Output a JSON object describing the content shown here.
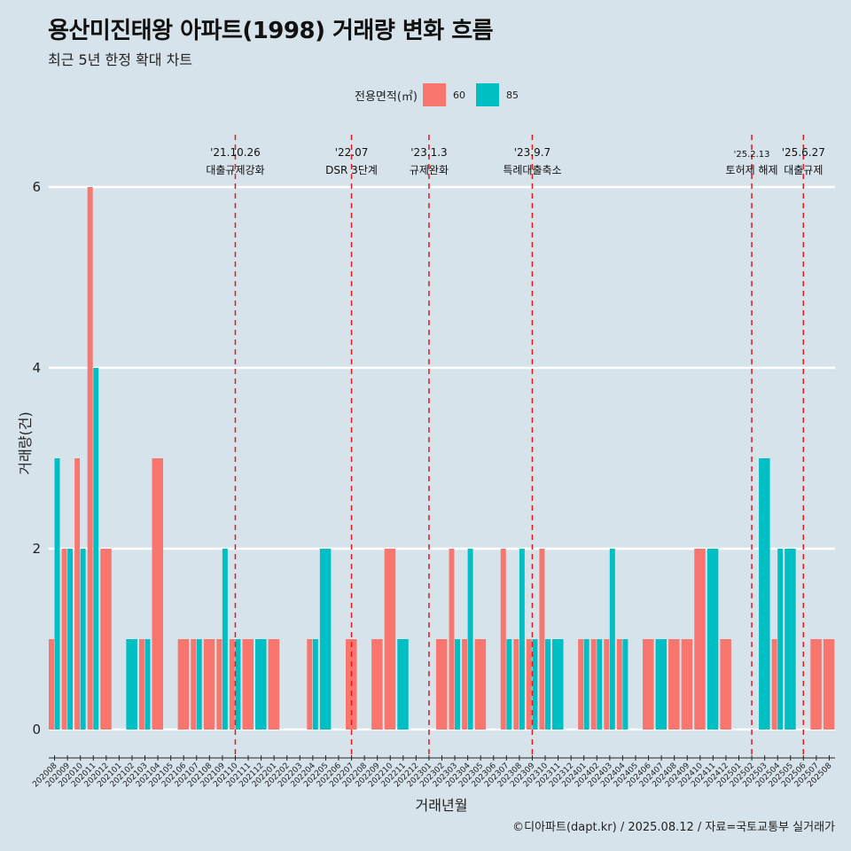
{
  "title": "용산미진태왕 아파트(1998) 거래량 변화 흐름",
  "subtitle": "최근 5년 한정 확대 차트",
  "legend": {
    "title": "전용면적(㎡)",
    "items": [
      {
        "label": "60",
        "color": "#f8766d"
      },
      {
        "label": "85",
        "color": "#00bfc4"
      }
    ]
  },
  "caption": "©디아파트(dapt.kr) / 2025.08.12 / 자료=국토교통부 실거래가",
  "chart_data": {
    "type": "bar",
    "xlabel": "거래년월",
    "ylabel": "거래량(건)",
    "ylim": [
      0,
      6
    ],
    "yticks": [
      0,
      2,
      4,
      6
    ],
    "grid": true,
    "legend_position": "top",
    "categories": [
      "202008",
      "202009",
      "202010",
      "202011",
      "202012",
      "202101",
      "202102",
      "202103",
      "202104",
      "202105",
      "202106",
      "202107",
      "202108",
      "202109",
      "202110",
      "202111",
      "202112",
      "202201",
      "202202",
      "202203",
      "202204",
      "202205",
      "202206",
      "202207",
      "202208",
      "202209",
      "202210",
      "202211",
      "202212",
      "202301",
      "202302",
      "202303",
      "202304",
      "202305",
      "202306",
      "202307",
      "202308",
      "202309",
      "202310",
      "202311",
      "202312",
      "202401",
      "202402",
      "202403",
      "202404",
      "202405",
      "202406",
      "202407",
      "202408",
      "202409",
      "202410",
      "202411",
      "202412",
      "202501",
      "202502",
      "202503",
      "202504",
      "202505",
      "202506",
      "202507",
      "202508"
    ],
    "series": [
      {
        "name": "60",
        "color": "#f8766d",
        "values": [
          1,
          2,
          3,
          6,
          2,
          0,
          0,
          1,
          3,
          0,
          1,
          1,
          1,
          1,
          1,
          1,
          0,
          1,
          0,
          0,
          1,
          0,
          0,
          1,
          0,
          1,
          2,
          0,
          0,
          0,
          1,
          2,
          1,
          1,
          0,
          2,
          1,
          1,
          2,
          0,
          0,
          1,
          1,
          1,
          1,
          0,
          1,
          0,
          1,
          1,
          2,
          0,
          1,
          0,
          0,
          0,
          1,
          0,
          0,
          1,
          1
        ]
      },
      {
        "name": "85",
        "color": "#00bfc4",
        "values": [
          3,
          2,
          2,
          4,
          0,
          0,
          1,
          1,
          0,
          0,
          0,
          1,
          0,
          2,
          1,
          0,
          1,
          0,
          0,
          0,
          1,
          2,
          0,
          0,
          0,
          0,
          0,
          1,
          0,
          0,
          0,
          1,
          2,
          0,
          0,
          1,
          2,
          1,
          1,
          1,
          0,
          1,
          1,
          2,
          1,
          0,
          0,
          1,
          0,
          0,
          0,
          2,
          0,
          0,
          0,
          3,
          2,
          2,
          0,
          0,
          0
        ]
      }
    ],
    "events": [
      {
        "date": "'21.10.26",
        "label": "대출규제강화",
        "month": "202110"
      },
      {
        "date": "'22.07",
        "label": "DSR 3단계",
        "month": "202207"
      },
      {
        "date": "'23.1.3",
        "label": "규제완화",
        "month": "202301"
      },
      {
        "date": "'23.9.7",
        "label": "특례대출축소",
        "month": "202309"
      },
      {
        "date": "'25.2.13",
        "label": "토허제 해제",
        "month": "202502"
      },
      {
        "date": "'25.6.27",
        "label": "대출규제",
        "month": "202506"
      }
    ]
  }
}
